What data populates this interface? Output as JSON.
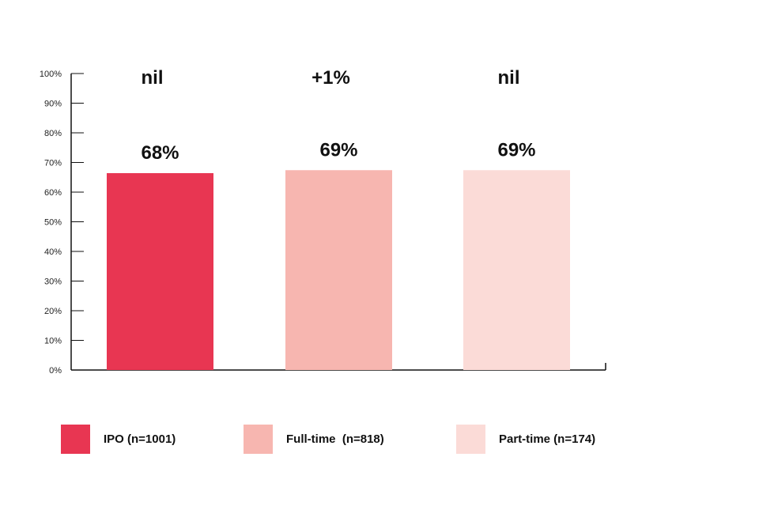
{
  "chart_data": {
    "type": "bar",
    "categories": [
      "IPO (n=1001)",
      "Full-time  (n=818)",
      "Part-time (n=174)"
    ],
    "values": [
      68,
      69,
      69
    ],
    "value_labels": [
      "68%",
      "69%",
      "69%"
    ],
    "change_labels": [
      "nil",
      "+1%",
      "nil"
    ],
    "colors": [
      "#e83652",
      "#f7b6b0",
      "#fbdbd7"
    ],
    "ylim": [
      0,
      100
    ],
    "yticks": [
      0,
      10,
      20,
      30,
      40,
      50,
      60,
      70,
      80,
      90,
      100
    ],
    "ytick_labels": [
      "0%",
      "10%",
      "20%",
      "30%",
      "40%",
      "50%",
      "60%",
      "70%",
      "80%",
      "90%",
      "100%"
    ],
    "grid": false,
    "legend_position": "bottom"
  }
}
